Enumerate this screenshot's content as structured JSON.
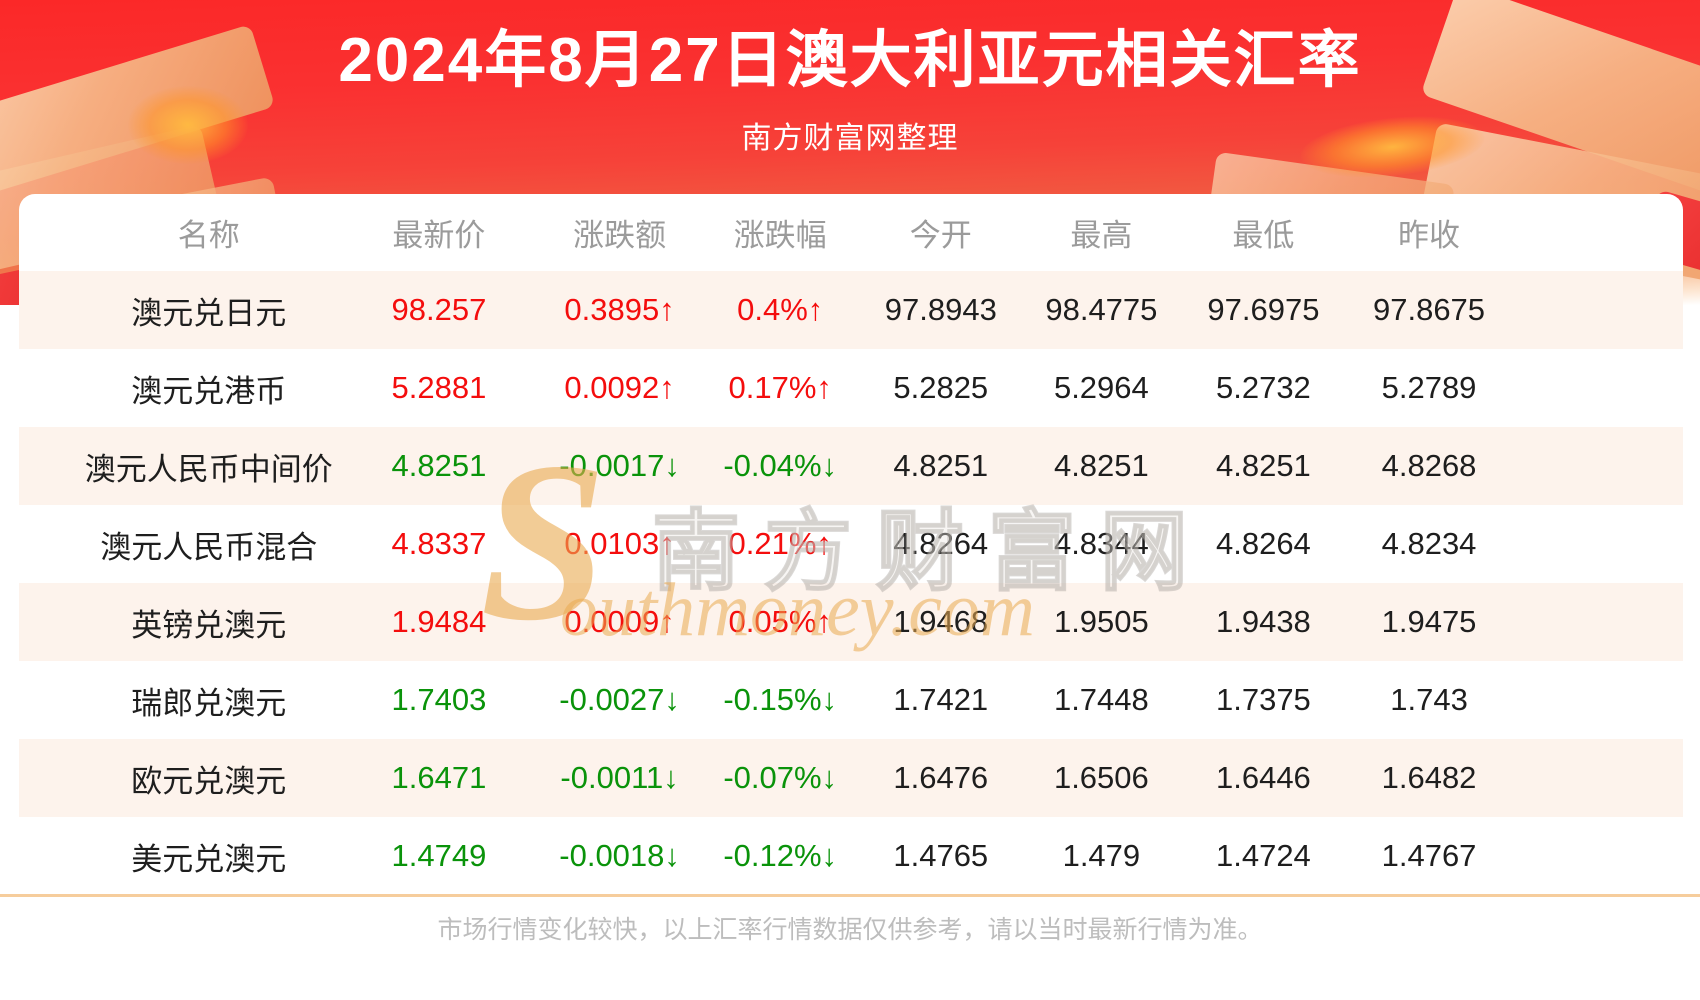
{
  "header": {
    "title": "2024年8月27日澳大利亚元相关汇率",
    "subtitle": "南方财富网整理"
  },
  "watermark": {
    "s_letter": "S",
    "cn": "南方财富网",
    "rest": "outhmoney.com"
  },
  "chart_data": {
    "type": "table",
    "title": "2024年8月27日澳大利亚元相关汇率",
    "columns": [
      "名称",
      "最新价",
      "涨跌额",
      "涨跌幅",
      "今开",
      "最高",
      "最低",
      "昨收"
    ],
    "arrows": {
      "up": "↑",
      "down": "↓"
    },
    "rows": [
      {
        "name": "澳元兑日元",
        "latest": "98.257",
        "change": "0.3895",
        "change_pct": "0.4%",
        "open": "97.8943",
        "high": "98.4775",
        "low": "97.6975",
        "prev_close": "97.8675",
        "direction": "up"
      },
      {
        "name": "澳元兑港币",
        "latest": "5.2881",
        "change": "0.0092",
        "change_pct": "0.17%",
        "open": "5.2825",
        "high": "5.2964",
        "low": "5.2732",
        "prev_close": "5.2789",
        "direction": "up"
      },
      {
        "name": "澳元人民币中间价",
        "latest": "4.8251",
        "change": "-0.0017",
        "change_pct": "-0.04%",
        "open": "4.8251",
        "high": "4.8251",
        "low": "4.8251",
        "prev_close": "4.8268",
        "direction": "down"
      },
      {
        "name": "澳元人民币混合",
        "latest": "4.8337",
        "change": "0.0103",
        "change_pct": "0.21%",
        "open": "4.8264",
        "high": "4.8344",
        "low": "4.8264",
        "prev_close": "4.8234",
        "direction": "up"
      },
      {
        "name": "英镑兑澳元",
        "latest": "1.9484",
        "change": "0.0009",
        "change_pct": "0.05%",
        "open": "1.9468",
        "high": "1.9505",
        "low": "1.9438",
        "prev_close": "1.9475",
        "direction": "up"
      },
      {
        "name": "瑞郎兑澳元",
        "latest": "1.7403",
        "change": "-0.0027",
        "change_pct": "-0.15%",
        "open": "1.7421",
        "high": "1.7448",
        "low": "1.7375",
        "prev_close": "1.743",
        "direction": "down"
      },
      {
        "name": "欧元兑澳元",
        "latest": "1.6471",
        "change": "-0.0011",
        "change_pct": "-0.07%",
        "open": "1.6476",
        "high": "1.6506",
        "low": "1.6446",
        "prev_close": "1.6482",
        "direction": "down"
      },
      {
        "name": "美元兑澳元",
        "latest": "1.4749",
        "change": "-0.0018",
        "change_pct": "-0.12%",
        "open": "1.4765",
        "high": "1.479",
        "low": "1.4724",
        "prev_close": "1.4767",
        "direction": "down"
      }
    ]
  },
  "footer": {
    "note": "市场行情变化较快，以上汇率行情数据仅供参考，请以当时最新行情为准。"
  },
  "colors": {
    "banner_red_top": "#fb2828",
    "banner_orange_bottom": "#f6ae7d",
    "up_red": "#f40d0d",
    "down_green": "#0a930a",
    "stripe_pink": "#fdf3ec",
    "header_gray": "#9b9b9b",
    "divider_tan": "#f6cd9c",
    "watermark_gold": "#e9aa50"
  }
}
